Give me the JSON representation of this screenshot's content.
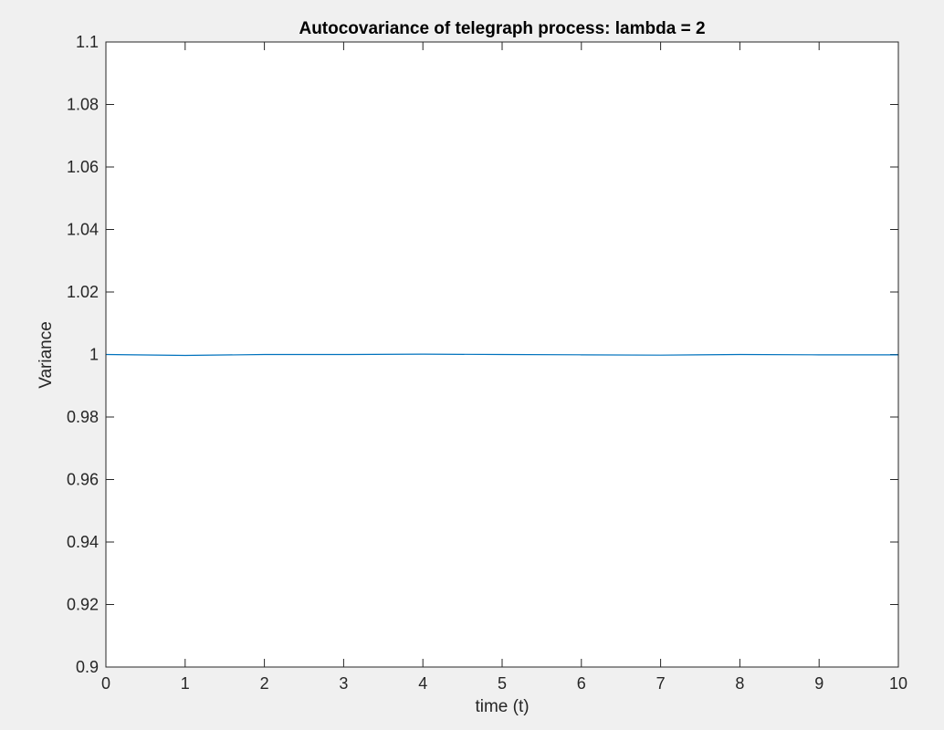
{
  "chart_data": {
    "type": "line",
    "title": "Autocovariance of telegraph process: lambda = 2",
    "xlabel": "time (t)",
    "ylabel": "Variance",
    "xlim": [
      0,
      10
    ],
    "ylim": [
      0.9,
      1.1
    ],
    "x_ticks": [
      0,
      1,
      2,
      3,
      4,
      5,
      6,
      7,
      8,
      9,
      10
    ],
    "x_tick_labels": [
      "0",
      "1",
      "2",
      "3",
      "4",
      "5",
      "6",
      "7",
      "8",
      "9",
      "10"
    ],
    "y_ticks": [
      0.9,
      0.92,
      0.94,
      0.96,
      0.98,
      1.0,
      1.02,
      1.04,
      1.06,
      1.08,
      1.1
    ],
    "y_tick_labels": [
      "0.9",
      "0.92",
      "0.94",
      "0.96",
      "0.98",
      "1",
      "1.02",
      "1.04",
      "1.06",
      "1.08",
      "1.1"
    ],
    "grid": false,
    "series": [
      {
        "color": "#0072bd",
        "x": [
          0,
          1,
          2,
          3,
          4,
          5,
          6,
          7,
          8,
          9,
          10
        ],
        "y": [
          1.0,
          0.9997,
          1.0,
          1.0,
          1.0001,
          1.0,
          0.9999,
          0.9998,
          1.0,
          0.9999,
          0.9999
        ]
      }
    ]
  },
  "colors": {
    "figure_background": "#f0f0f0",
    "axes_background": "#ffffff",
    "axis_color": "#262626"
  }
}
